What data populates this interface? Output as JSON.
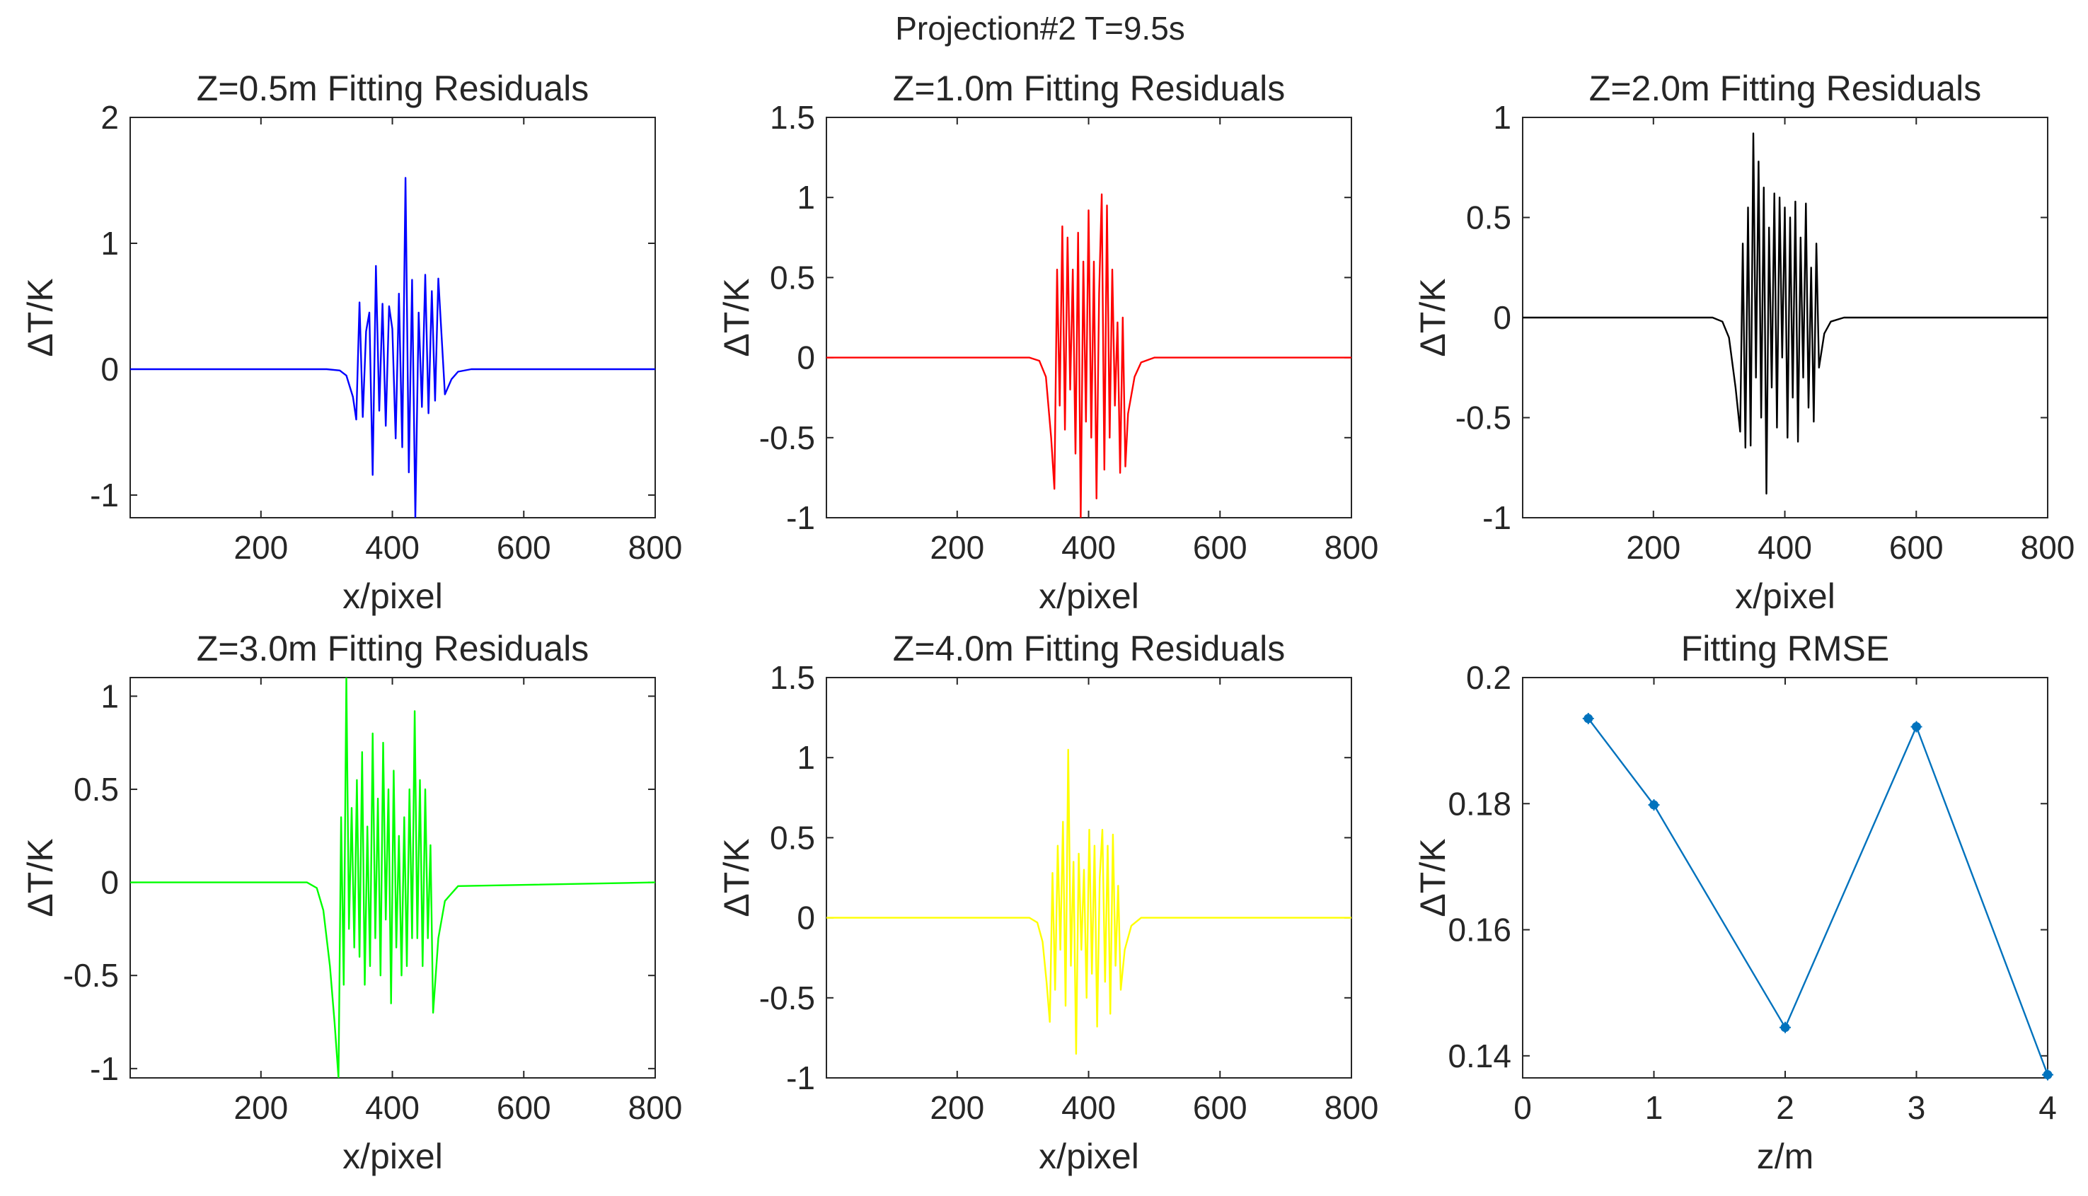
{
  "figure_title": "Projection#2 T=9.5s",
  "chart_data": [
    {
      "type": "line",
      "title": "Z=0.5m Fitting Residuals",
      "xlabel": "x/pixel",
      "ylabel": "ΔT/K",
      "xlim": [
        1,
        800
      ],
      "ylim": [
        -1.18,
        2
      ],
      "xticks": [
        200,
        400,
        600,
        800
      ],
      "xticklabels": [
        "200",
        "400",
        "600",
        "800"
      ],
      "yticks": [
        -1,
        0,
        1,
        2
      ],
      "yticklabels": [
        "-1",
        "0",
        "1",
        "2"
      ],
      "color": "#0000ff",
      "series": [
        {
          "name": "residual",
          "x": [
            1,
            300,
            320,
            330,
            340,
            345,
            350,
            355,
            360,
            365,
            370,
            375,
            380,
            385,
            390,
            395,
            400,
            405,
            410,
            415,
            420,
            425,
            430,
            435,
            440,
            445,
            450,
            455,
            460,
            465,
            470,
            480,
            490,
            500,
            520,
            800
          ],
          "y": [
            0,
            0,
            -0.01,
            -0.05,
            -0.22,
            -0.4,
            0.53,
            -0.38,
            0.3,
            0.45,
            -0.84,
            0.82,
            -0.33,
            0.52,
            -0.45,
            0.5,
            0.32,
            -0.55,
            0.6,
            -0.62,
            1.52,
            -0.82,
            0.71,
            -1.18,
            0.45,
            -0.3,
            0.75,
            -0.35,
            0.62,
            -0.25,
            0.72,
            -0.2,
            -0.08,
            -0.02,
            0,
            0
          ]
        }
      ]
    },
    {
      "type": "line",
      "title": "Z=1.0m Fitting Residuals",
      "xlabel": "x/pixel",
      "ylabel": "ΔT/K",
      "xlim": [
        1,
        800
      ],
      "ylim": [
        -1,
        1.5
      ],
      "xticks": [
        200,
        400,
        600,
        800
      ],
      "xticklabels": [
        "200",
        "400",
        "600",
        "800"
      ],
      "yticks": [
        -1,
        -0.5,
        0,
        0.5,
        1,
        1.5
      ],
      "yticklabels": [
        "-1",
        "-0.5",
        "0",
        "0.5",
        "1",
        "1.5"
      ],
      "color": "#ff0000",
      "series": [
        {
          "name": "residual",
          "x": [
            1,
            310,
            325,
            335,
            343,
            348,
            352,
            356,
            360,
            364,
            368,
            372,
            376,
            380,
            384,
            388,
            392,
            396,
            400,
            404,
            408,
            412,
            416,
            420,
            424,
            428,
            432,
            436,
            440,
            444,
            448,
            452,
            456,
            460,
            470,
            480,
            500,
            800
          ],
          "y": [
            0,
            0,
            -0.02,
            -0.12,
            -0.5,
            -0.82,
            0.55,
            -0.3,
            0.82,
            -0.45,
            0.75,
            -0.2,
            0.55,
            -0.6,
            0.78,
            -1.0,
            0.6,
            -0.4,
            0.92,
            -0.5,
            0.6,
            -0.88,
            0.4,
            1.02,
            -0.7,
            0.95,
            -0.5,
            0.55,
            -0.3,
            0.22,
            -0.72,
            0.25,
            -0.68,
            -0.35,
            -0.12,
            -0.03,
            0,
            0
          ]
        }
      ]
    },
    {
      "type": "line",
      "title": "Z=2.0m Fitting Residuals",
      "xlabel": "x/pixel",
      "ylabel": "ΔT/K",
      "xlim": [
        1,
        800
      ],
      "ylim": [
        -1,
        1
      ],
      "xticks": [
        200,
        400,
        600,
        800
      ],
      "xticklabels": [
        "200",
        "400",
        "600",
        "800"
      ],
      "yticks": [
        -1,
        -0.5,
        0,
        0.5,
        1
      ],
      "yticklabels": [
        "-1",
        "-0.5",
        "0",
        "0.5",
        "1"
      ],
      "color": "#000000",
      "series": [
        {
          "name": "residual",
          "x": [
            1,
            290,
            305,
            315,
            325,
            332,
            336,
            340,
            344,
            348,
            352,
            356,
            360,
            364,
            368,
            372,
            376,
            380,
            384,
            388,
            392,
            396,
            400,
            404,
            408,
            412,
            416,
            420,
            424,
            428,
            432,
            436,
            440,
            444,
            448,
            452,
            460,
            470,
            490,
            800
          ],
          "y": [
            0,
            0,
            -0.02,
            -0.1,
            -0.35,
            -0.57,
            0.37,
            -0.65,
            0.55,
            -0.64,
            0.92,
            -0.3,
            0.78,
            -0.5,
            0.65,
            -0.88,
            0.45,
            -0.35,
            0.62,
            -0.55,
            0.6,
            -0.2,
            0.55,
            -0.6,
            0.5,
            -0.4,
            0.58,
            -0.62,
            0.4,
            -0.3,
            0.57,
            -0.45,
            0.25,
            -0.52,
            0.37,
            -0.25,
            -0.08,
            -0.02,
            0,
            0
          ]
        }
      ]
    },
    {
      "type": "line",
      "title": "Z=3.0m Fitting Residuals",
      "xlabel": "x/pixel",
      "ylabel": "ΔT/K",
      "xlim": [
        1,
        800
      ],
      "ylim": [
        -1.05,
        1.1
      ],
      "xticks": [
        200,
        400,
        600,
        800
      ],
      "xticklabels": [
        "200",
        "400",
        "600",
        "800"
      ],
      "yticks": [
        -1,
        -0.5,
        0,
        0.5,
        1
      ],
      "yticklabels": [
        "-1",
        "-0.5",
        "0",
        "0.5",
        "1"
      ],
      "color": "#00ff00",
      "series": [
        {
          "name": "residual",
          "x": [
            1,
            270,
            285,
            295,
            305,
            312,
            318,
            322,
            326,
            330,
            334,
            338,
            342,
            346,
            350,
            354,
            358,
            362,
            366,
            370,
            374,
            378,
            382,
            386,
            390,
            394,
            398,
            402,
            406,
            410,
            414,
            418,
            422,
            426,
            430,
            434,
            438,
            442,
            446,
            450,
            454,
            458,
            462,
            470,
            480,
            500,
            800
          ],
          "y": [
            0,
            0,
            -0.03,
            -0.15,
            -0.45,
            -0.75,
            -1.05,
            0.35,
            -0.55,
            1.1,
            -0.25,
            0.4,
            -0.35,
            0.55,
            -0.4,
            0.7,
            -0.55,
            0.3,
            -0.45,
            0.8,
            -0.3,
            0.45,
            -0.5,
            0.75,
            -0.2,
            0.5,
            -0.65,
            0.6,
            -0.35,
            0.25,
            -0.5,
            0.35,
            -0.45,
            0.5,
            -0.3,
            0.92,
            -0.3,
            0.55,
            -0.45,
            0.5,
            -0.3,
            0.2,
            -0.7,
            -0.3,
            -0.1,
            -0.02,
            0
          ]
        }
      ]
    },
    {
      "type": "line",
      "title": "Z=4.0m Fitting Residuals",
      "xlabel": "x/pixel",
      "ylabel": "ΔT/K",
      "xlim": [
        1,
        800
      ],
      "ylim": [
        -1,
        1.5
      ],
      "xticks": [
        200,
        400,
        600,
        800
      ],
      "xticklabels": [
        "200",
        "400",
        "600",
        "800"
      ],
      "yticks": [
        -1,
        -0.5,
        0,
        0.5,
        1,
        1.5
      ],
      "yticklabels": [
        "-1",
        "-0.5",
        "0",
        "0.5",
        "1",
        "1.5"
      ],
      "color": "#ffff00",
      "series": [
        {
          "name": "residual",
          "x": [
            1,
            310,
            322,
            330,
            336,
            341,
            345,
            349,
            353,
            357,
            361,
            365,
            369,
            373,
            377,
            381,
            385,
            389,
            393,
            397,
            401,
            405,
            409,
            413,
            417,
            421,
            425,
            429,
            433,
            437,
            441,
            445,
            449,
            455,
            465,
            480,
            800
          ],
          "y": [
            0,
            0,
            -0.03,
            -0.15,
            -0.4,
            -0.65,
            0.28,
            -0.45,
            0.45,
            -0.2,
            0.6,
            -0.55,
            1.05,
            -0.3,
            0.35,
            -0.85,
            0.4,
            -0.2,
            0.3,
            -0.5,
            0.55,
            -0.35,
            0.45,
            -0.68,
            0.25,
            0.55,
            -0.4,
            0.45,
            -0.6,
            0.52,
            -0.3,
            0.2,
            -0.45,
            -0.2,
            -0.05,
            0,
            0
          ]
        }
      ]
    },
    {
      "type": "line",
      "title": "Fitting RMSE",
      "xlabel": "z/m",
      "ylabel": "ΔT/K",
      "xlim": [
        0,
        4
      ],
      "ylim": [
        0.1365,
        0.2
      ],
      "xticks": [
        0,
        1,
        2,
        3,
        4
      ],
      "xticklabels": [
        "0",
        "1",
        "2",
        "3",
        "4"
      ],
      "yticks": [
        0.14,
        0.16,
        0.18,
        0.2
      ],
      "yticklabels": [
        "0.14",
        "0.16",
        "0.18",
        "0.2"
      ],
      "color": "#0072bd",
      "markers": true,
      "series": [
        {
          "name": "RMSE",
          "x": [
            0.5,
            1,
            2,
            3,
            4
          ],
          "y": [
            0.1935,
            0.1798,
            0.1445,
            0.1922,
            0.137
          ]
        }
      ]
    }
  ]
}
